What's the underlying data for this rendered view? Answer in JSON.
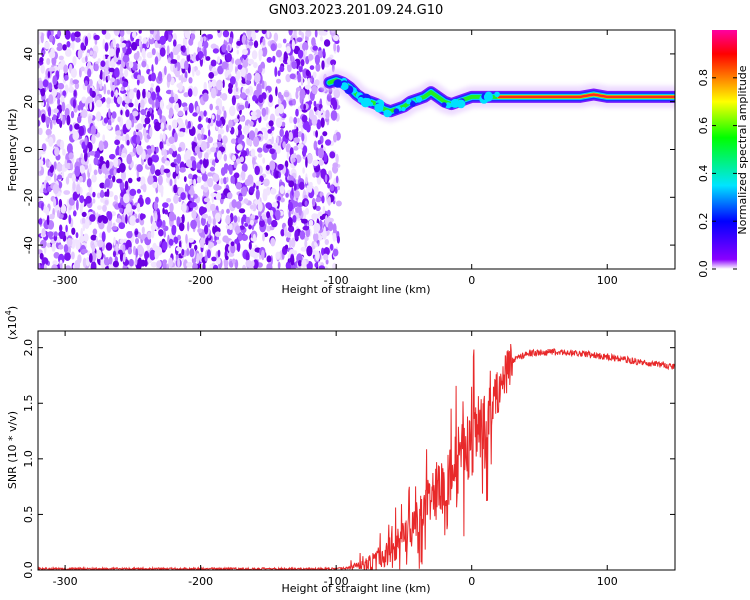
{
  "title": "GN03.2023.201.09.24.G10",
  "chart_data": [
    {
      "type": "heatmap",
      "panel": "spectrogram",
      "xlabel": "Height of straight line (km)",
      "ylabel": "Frequency (Hz)",
      "xlim": [
        -320,
        150
      ],
      "ylim": [
        -50,
        50
      ],
      "x_ticks": [
        -300,
        -200,
        -100,
        0,
        100
      ],
      "y_ticks": [
        -40,
        -20,
        0,
        20,
        40
      ],
      "noise_region_x": [
        -320,
        -98
      ],
      "ridge": {
        "x": [
          -105,
          -100,
          -95,
          -90,
          -85,
          -80,
          -75,
          -70,
          -65,
          -60,
          -55,
          -50,
          -45,
          -40,
          -35,
          -30,
          -25,
          -20,
          -15,
          -10,
          -5,
          0,
          10,
          20,
          30,
          40,
          50,
          60,
          70,
          80,
          90,
          100,
          110,
          120,
          130,
          140,
          150
        ],
        "y": [
          28,
          29,
          28,
          26,
          23,
          21,
          20,
          19,
          17,
          16,
          17,
          18,
          20,
          21,
          22,
          24,
          22,
          20,
          19,
          20,
          21,
          22,
          22,
          22,
          22,
          22,
          22,
          22,
          22,
          22,
          23,
          22,
          22,
          22,
          22,
          22,
          22
        ]
      },
      "colorbar": {
        "label": "Normalized spectral amplitude",
        "range": [
          0,
          1
        ],
        "ticks": [
          "0.0",
          "0.2",
          "0.4",
          "0.6",
          "0.8"
        ],
        "colors": [
          "#ffffff",
          "#8a00ff",
          "#0000ff",
          "#00e5ff",
          "#00ff00",
          "#ffff00",
          "#ff8000",
          "#ff0000",
          "#ff00a0"
        ]
      }
    },
    {
      "type": "line",
      "panel": "snr",
      "xlabel": "Height of straight line (km)",
      "ylabel": "SNR (10 * v/v)",
      "y_multiplier_label": "(x10",
      "y_multiplier_exp": "4",
      "xlim": [
        -320,
        150
      ],
      "ylim": [
        0,
        2.15
      ],
      "x_ticks": [
        -300,
        -200,
        -100,
        0,
        100
      ],
      "y_ticks": [
        "0.0",
        "0.5",
        "1.0",
        "1.5",
        "2.0"
      ],
      "color": "#e8292a",
      "series": [
        {
          "x": [
            -320,
            -100,
            -80,
            -70,
            -60,
            -50,
            -40,
            -30,
            -20,
            -10,
            0,
            10,
            20,
            30,
            40,
            60,
            80,
            90,
            100,
            110,
            120,
            130,
            140,
            150
          ],
          "y": [
            0.01,
            0.01,
            0.03,
            0.08,
            0.18,
            0.3,
            0.45,
            0.62,
            0.8,
            0.98,
            1.15,
            1.35,
            1.62,
            1.88,
            1.95,
            1.96,
            1.95,
            1.93,
            1.92,
            1.9,
            1.88,
            1.86,
            1.85,
            1.82
          ]
        }
      ]
    }
  ]
}
